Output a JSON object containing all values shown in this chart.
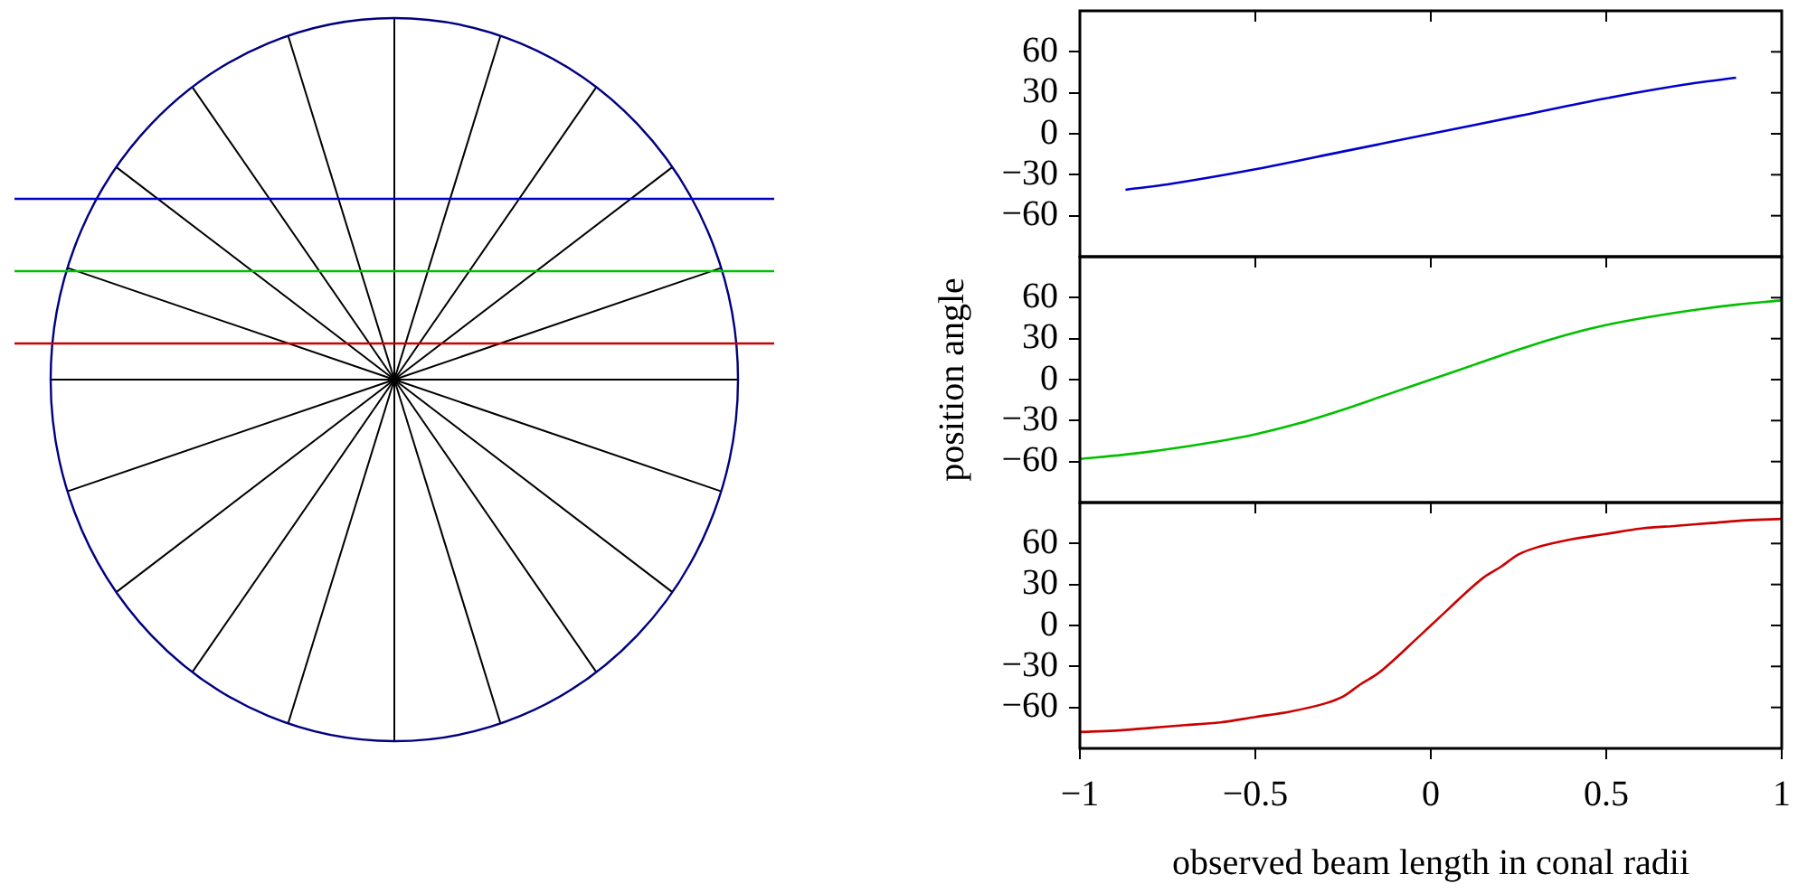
{
  "chart_data": [
    {
      "type": "line",
      "x": [
        -0.87,
        -0.75,
        -0.5,
        -0.25,
        0,
        0.25,
        0.5,
        0.75,
        0.87
      ],
      "series": [
        {
          "color": "#0000cc",
          "values": [
            -41,
            -37,
            -26,
            -13,
            0,
            13,
            26,
            37,
            41
          ]
        }
      ],
      "xlim": [
        -1,
        1
      ],
      "xticks": [
        -1,
        -0.5,
        0,
        0.5,
        1
      ],
      "ylim": [
        -90,
        90
      ],
      "yticks": [
        -60,
        -30,
        0,
        30,
        60
      ],
      "tick_labels": "y",
      "grid": false,
      "legend": false
    },
    {
      "type": "line",
      "x": [
        -1,
        -0.875,
        -0.75,
        -0.625,
        -0.5,
        -0.375,
        -0.25,
        -0.125,
        0,
        0.125,
        0.25,
        0.375,
        0.5,
        0.625,
        0.75,
        0.875,
        1
      ],
      "series": [
        {
          "color": "#00c000",
          "values": [
            -58,
            -55,
            -51,
            -46,
            -40,
            -32,
            -22,
            -11,
            0,
            11,
            22,
            32,
            40,
            46,
            51,
            55,
            58
          ]
        }
      ],
      "ylabel": "position angle",
      "xlim": [
        -1,
        1
      ],
      "xticks": [
        -1,
        -0.5,
        0,
        0.5,
        1
      ],
      "ylim": [
        -90,
        90
      ],
      "yticks": [
        -60,
        -30,
        0,
        30,
        60
      ],
      "tick_labels": "y",
      "grid": false,
      "legend": false
    },
    {
      "type": "line",
      "x": [
        -1,
        -0.9,
        -0.8,
        -0.7,
        -0.6,
        -0.5,
        -0.4,
        -0.3,
        -0.25,
        -0.2,
        -0.15,
        -0.1,
        -0.05,
        0,
        0.05,
        0.1,
        0.15,
        0.2,
        0.25,
        0.3,
        0.4,
        0.5,
        0.6,
        0.7,
        0.8,
        0.9,
        1
      ],
      "series": [
        {
          "color": "#cc0000",
          "values": [
            -78,
            -77,
            -75,
            -73,
            -71,
            -67,
            -63,
            -57,
            -52,
            -43,
            -35,
            -24,
            -12,
            0,
            12,
            24,
            35,
            43,
            52,
            57,
            63,
            67,
            71,
            73,
            75,
            77,
            78
          ]
        }
      ],
      "xlabel": "observed beam length in conal radii",
      "xlim": [
        -1,
        1
      ],
      "xticks": [
        -1,
        -0.5,
        0,
        0.5,
        1
      ],
      "ylim": [
        -90,
        90
      ],
      "yticks": [
        -60,
        -30,
        0,
        30,
        60
      ],
      "grid": false,
      "legend": false
    }
  ]
}
